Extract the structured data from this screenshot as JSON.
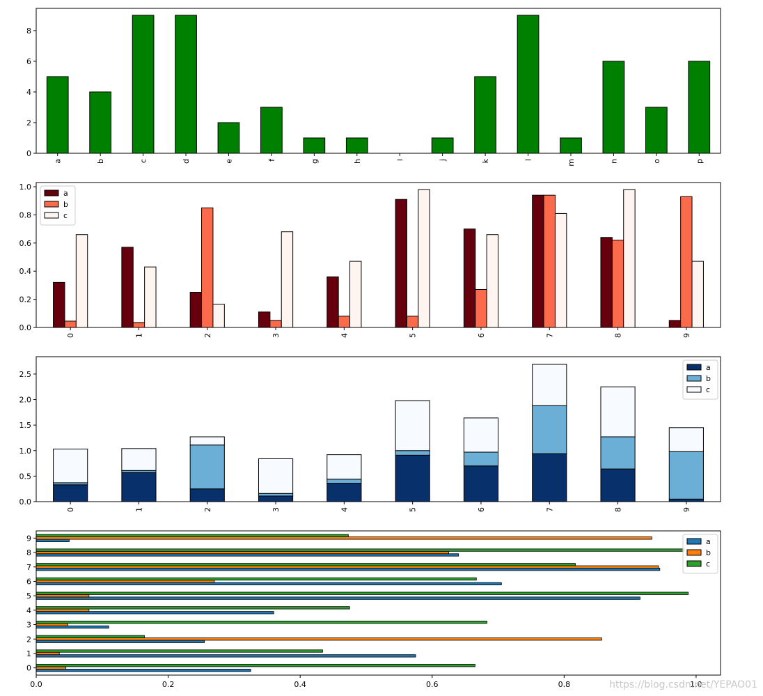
{
  "watermark": "https://blog.csdn.net/YEPAO01",
  "chart_data": [
    {
      "type": "bar",
      "categories": [
        "a",
        "b",
        "c",
        "d",
        "e",
        "f",
        "g",
        "h",
        "i",
        "j",
        "k",
        "l",
        "m",
        "n",
        "o",
        "p"
      ],
      "values": [
        5,
        4,
        9,
        9,
        2,
        3,
        1,
        1,
        0,
        1,
        5,
        9,
        1,
        6,
        3,
        6
      ],
      "color": "#008000",
      "ylim": [
        0,
        9.45
      ],
      "yticks": [
        0,
        2,
        4,
        6,
        8
      ],
      "xtick_rotation": 90,
      "legend": null
    },
    {
      "type": "bar",
      "categories": [
        "0",
        "1",
        "2",
        "3",
        "4",
        "5",
        "6",
        "7",
        "8",
        "9"
      ],
      "series": [
        {
          "name": "a",
          "color": "#67000d",
          "values": [
            0.32,
            0.57,
            0.25,
            0.11,
            0.36,
            0.91,
            0.7,
            0.94,
            0.64,
            0.05
          ]
        },
        {
          "name": "b",
          "color": "#fb6a4a",
          "values": [
            0.045,
            0.035,
            0.85,
            0.05,
            0.08,
            0.08,
            0.27,
            0.94,
            0.62,
            0.93
          ]
        },
        {
          "name": "c",
          "color": "#fff5f0",
          "values": [
            0.66,
            0.43,
            0.165,
            0.68,
            0.47,
            0.98,
            0.66,
            0.81,
            0.98,
            0.47
          ]
        }
      ],
      "ylim": [
        0,
        1.03
      ],
      "yticks": [
        0.0,
        0.2,
        0.4,
        0.6,
        0.8,
        1.0
      ],
      "xtick_rotation": 90,
      "legend": "top-left"
    },
    {
      "type": "bar",
      "stacked": true,
      "categories": [
        "0",
        "1",
        "2",
        "3",
        "4",
        "5",
        "6",
        "7",
        "8",
        "9"
      ],
      "series": [
        {
          "name": "a",
          "color": "#08306b",
          "values": [
            0.33,
            0.57,
            0.25,
            0.11,
            0.36,
            0.91,
            0.7,
            0.94,
            0.64,
            0.05
          ]
        },
        {
          "name": "b",
          "color": "#6baed6",
          "values": [
            0.04,
            0.04,
            0.86,
            0.05,
            0.08,
            0.09,
            0.27,
            0.94,
            0.63,
            0.93
          ]
        },
        {
          "name": "c",
          "color": "#f7fbff",
          "values": [
            0.66,
            0.43,
            0.16,
            0.68,
            0.48,
            0.98,
            0.67,
            0.81,
            0.98,
            0.47
          ]
        }
      ],
      "ylim": [
        0,
        2.84
      ],
      "yticks": [
        0.0,
        0.5,
        1.0,
        1.5,
        2.0,
        2.5
      ],
      "xtick_rotation": 90,
      "legend": "top-right"
    },
    {
      "type": "barh",
      "categories": [
        "0",
        "1",
        "2",
        "3",
        "4",
        "5",
        "6",
        "7",
        "8",
        "9"
      ],
      "series": [
        {
          "name": "a",
          "color": "#1f77b4",
          "values": [
            0.325,
            0.575,
            0.255,
            0.11,
            0.36,
            0.915,
            0.705,
            0.945,
            0.64,
            0.05
          ]
        },
        {
          "name": "b",
          "color": "#ff7f0e",
          "values": [
            0.045,
            0.035,
            0.857,
            0.048,
            0.08,
            0.08,
            0.27,
            0.943,
            0.625,
            0.933
          ]
        },
        {
          "name": "c",
          "color": "#2ca02c",
          "values": [
            0.665,
            0.434,
            0.164,
            0.683,
            0.475,
            0.988,
            0.667,
            0.817,
            0.982,
            0.473
          ]
        }
      ],
      "xlim": [
        0,
        1.037
      ],
      "xticks": [
        0.0,
        0.2,
        0.4,
        0.6,
        0.8,
        1.0
      ],
      "legend": "top-right"
    }
  ]
}
